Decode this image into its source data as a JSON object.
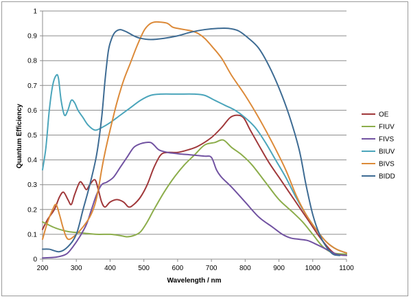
{
  "chart_data": {
    "type": "line",
    "title": "",
    "xlabel": "Wavelength / nm",
    "ylabel": "Quantum Efficiency",
    "xlim": [
      200,
      1100
    ],
    "ylim": [
      0,
      1
    ],
    "xticks": [
      200,
      300,
      400,
      500,
      600,
      700,
      800,
      900,
      1000,
      1100
    ],
    "yticks": [
      0,
      0.1,
      0.2,
      0.3,
      0.4,
      0.5,
      0.6,
      0.7,
      0.8,
      0.9,
      1
    ],
    "grid": "horizontal",
    "legend_position": "right",
    "series": [
      {
        "name": "OE",
        "color": "#a0383a",
        "points": [
          [
            200,
            0.12
          ],
          [
            215,
            0.16
          ],
          [
            235,
            0.2
          ],
          [
            250,
            0.25
          ],
          [
            262,
            0.27
          ],
          [
            275,
            0.24
          ],
          [
            285,
            0.22
          ],
          [
            295,
            0.26
          ],
          [
            310,
            0.31
          ],
          [
            320,
            0.3
          ],
          [
            330,
            0.28
          ],
          [
            340,
            0.3
          ],
          [
            355,
            0.32
          ],
          [
            365,
            0.28
          ],
          [
            375,
            0.23
          ],
          [
            385,
            0.21
          ],
          [
            400,
            0.23
          ],
          [
            420,
            0.24
          ],
          [
            440,
            0.23
          ],
          [
            455,
            0.21
          ],
          [
            470,
            0.22
          ],
          [
            490,
            0.25
          ],
          [
            510,
            0.3
          ],
          [
            530,
            0.37
          ],
          [
            550,
            0.42
          ],
          [
            570,
            0.43
          ],
          [
            600,
            0.43
          ],
          [
            630,
            0.44
          ],
          [
            660,
            0.455
          ],
          [
            700,
            0.49
          ],
          [
            730,
            0.53
          ],
          [
            755,
            0.57
          ],
          [
            775,
            0.58
          ],
          [
            795,
            0.57
          ],
          [
            815,
            0.52
          ],
          [
            840,
            0.46
          ],
          [
            870,
            0.39
          ],
          [
            900,
            0.33
          ],
          [
            930,
            0.27
          ],
          [
            960,
            0.21
          ],
          [
            990,
            0.15
          ],
          [
            1020,
            0.09
          ],
          [
            1050,
            0.04
          ],
          [
            1070,
            0.02
          ],
          [
            1100,
            0.015
          ]
        ]
      },
      {
        "name": "FIUV",
        "color": "#8cad4b",
        "points": [
          [
            200,
            0.15
          ],
          [
            215,
            0.14
          ],
          [
            230,
            0.13
          ],
          [
            250,
            0.12
          ],
          [
            280,
            0.11
          ],
          [
            320,
            0.105
          ],
          [
            360,
            0.1
          ],
          [
            400,
            0.1
          ],
          [
            430,
            0.095
          ],
          [
            450,
            0.09
          ],
          [
            470,
            0.095
          ],
          [
            490,
            0.11
          ],
          [
            510,
            0.15
          ],
          [
            530,
            0.2
          ],
          [
            560,
            0.27
          ],
          [
            590,
            0.33
          ],
          [
            620,
            0.38
          ],
          [
            650,
            0.42
          ],
          [
            680,
            0.46
          ],
          [
            710,
            0.47
          ],
          [
            735,
            0.48
          ],
          [
            760,
            0.45
          ],
          [
            790,
            0.42
          ],
          [
            820,
            0.38
          ],
          [
            860,
            0.31
          ],
          [
            900,
            0.24
          ],
          [
            940,
            0.19
          ],
          [
            970,
            0.15
          ],
          [
            1000,
            0.1
          ],
          [
            1030,
            0.05
          ],
          [
            1060,
            0.025
          ],
          [
            1100,
            0.02
          ]
        ]
      },
      {
        "name": "FIVS",
        "color": "#7152a1",
        "points": [
          [
            200,
            0.005
          ],
          [
            240,
            0.008
          ],
          [
            270,
            0.02
          ],
          [
            290,
            0.05
          ],
          [
            310,
            0.09
          ],
          [
            330,
            0.14
          ],
          [
            345,
            0.2
          ],
          [
            360,
            0.26
          ],
          [
            375,
            0.3
          ],
          [
            390,
            0.31
          ],
          [
            410,
            0.33
          ],
          [
            430,
            0.37
          ],
          [
            450,
            0.41
          ],
          [
            470,
            0.45
          ],
          [
            490,
            0.465
          ],
          [
            505,
            0.47
          ],
          [
            520,
            0.47
          ],
          [
            530,
            0.46
          ],
          [
            545,
            0.44
          ],
          [
            570,
            0.43
          ],
          [
            600,
            0.425
          ],
          [
            640,
            0.42
          ],
          [
            680,
            0.415
          ],
          [
            700,
            0.41
          ],
          [
            715,
            0.36
          ],
          [
            730,
            0.33
          ],
          [
            760,
            0.29
          ],
          [
            800,
            0.23
          ],
          [
            840,
            0.17
          ],
          [
            880,
            0.13
          ],
          [
            910,
            0.1
          ],
          [
            935,
            0.085
          ],
          [
            960,
            0.08
          ],
          [
            985,
            0.075
          ],
          [
            1010,
            0.06
          ],
          [
            1040,
            0.04
          ],
          [
            1070,
            0.02
          ],
          [
            1100,
            0.015
          ]
        ]
      },
      {
        "name": "BIUV",
        "color": "#4ba5bb",
        "points": [
          [
            200,
            0.36
          ],
          [
            210,
            0.45
          ],
          [
            220,
            0.6
          ],
          [
            230,
            0.7
          ],
          [
            240,
            0.74
          ],
          [
            247,
            0.73
          ],
          [
            255,
            0.64
          ],
          [
            265,
            0.58
          ],
          [
            275,
            0.6
          ],
          [
            285,
            0.64
          ],
          [
            295,
            0.63
          ],
          [
            305,
            0.6
          ],
          [
            320,
            0.57
          ],
          [
            335,
            0.54
          ],
          [
            355,
            0.52
          ],
          [
            375,
            0.53
          ],
          [
            400,
            0.55
          ],
          [
            430,
            0.58
          ],
          [
            460,
            0.61
          ],
          [
            490,
            0.64
          ],
          [
            520,
            0.66
          ],
          [
            550,
            0.665
          ],
          [
            600,
            0.665
          ],
          [
            650,
            0.665
          ],
          [
            680,
            0.66
          ],
          [
            710,
            0.64
          ],
          [
            740,
            0.62
          ],
          [
            770,
            0.6
          ],
          [
            800,
            0.57
          ],
          [
            830,
            0.53
          ],
          [
            860,
            0.47
          ],
          [
            890,
            0.4
          ],
          [
            920,
            0.33
          ],
          [
            950,
            0.25
          ],
          [
            980,
            0.18
          ],
          [
            1010,
            0.12
          ],
          [
            1040,
            0.07
          ],
          [
            1070,
            0.04
          ],
          [
            1100,
            0.025
          ]
        ]
      },
      {
        "name": "BIVS",
        "color": "#dc8a39",
        "points": [
          [
            200,
            0.08
          ],
          [
            215,
            0.15
          ],
          [
            230,
            0.2
          ],
          [
            240,
            0.22
          ],
          [
            250,
            0.18
          ],
          [
            260,
            0.13
          ],
          [
            270,
            0.09
          ],
          [
            280,
            0.08
          ],
          [
            300,
            0.1
          ],
          [
            320,
            0.13
          ],
          [
            340,
            0.17
          ],
          [
            355,
            0.22
          ],
          [
            365,
            0.28
          ],
          [
            375,
            0.36
          ],
          [
            385,
            0.43
          ],
          [
            400,
            0.52
          ],
          [
            420,
            0.63
          ],
          [
            440,
            0.72
          ],
          [
            460,
            0.79
          ],
          [
            480,
            0.86
          ],
          [
            500,
            0.92
          ],
          [
            515,
            0.945
          ],
          [
            530,
            0.955
          ],
          [
            550,
            0.955
          ],
          [
            570,
            0.95
          ],
          [
            585,
            0.935
          ],
          [
            600,
            0.93
          ],
          [
            620,
            0.925
          ],
          [
            640,
            0.92
          ],
          [
            660,
            0.91
          ],
          [
            680,
            0.89
          ],
          [
            700,
            0.86
          ],
          [
            730,
            0.81
          ],
          [
            760,
            0.74
          ],
          [
            800,
            0.66
          ],
          [
            840,
            0.57
          ],
          [
            880,
            0.47
          ],
          [
            920,
            0.36
          ],
          [
            950,
            0.26
          ],
          [
            980,
            0.18
          ],
          [
            1010,
            0.12
          ],
          [
            1040,
            0.07
          ],
          [
            1070,
            0.04
          ],
          [
            1100,
            0.025
          ]
        ]
      },
      {
        "name": "BIDD",
        "color": "#3d6b93",
        "points": [
          [
            200,
            0.04
          ],
          [
            220,
            0.04
          ],
          [
            250,
            0.03
          ],
          [
            275,
            0.05
          ],
          [
            300,
            0.1
          ],
          [
            320,
            0.2
          ],
          [
            340,
            0.3
          ],
          [
            360,
            0.42
          ],
          [
            375,
            0.57
          ],
          [
            385,
            0.72
          ],
          [
            395,
            0.84
          ],
          [
            405,
            0.89
          ],
          [
            415,
            0.915
          ],
          [
            430,
            0.925
          ],
          [
            450,
            0.915
          ],
          [
            470,
            0.9
          ],
          [
            490,
            0.89
          ],
          [
            520,
            0.885
          ],
          [
            560,
            0.89
          ],
          [
            600,
            0.9
          ],
          [
            640,
            0.915
          ],
          [
            680,
            0.925
          ],
          [
            720,
            0.93
          ],
          [
            750,
            0.93
          ],
          [
            780,
            0.92
          ],
          [
            810,
            0.89
          ],
          [
            840,
            0.85
          ],
          [
            870,
            0.78
          ],
          [
            900,
            0.69
          ],
          [
            930,
            0.58
          ],
          [
            960,
            0.44
          ],
          [
            980,
            0.3
          ],
          [
            1000,
            0.18
          ],
          [
            1020,
            0.1
          ],
          [
            1040,
            0.05
          ],
          [
            1060,
            0.02
          ],
          [
            1080,
            0.015
          ]
        ]
      }
    ]
  }
}
